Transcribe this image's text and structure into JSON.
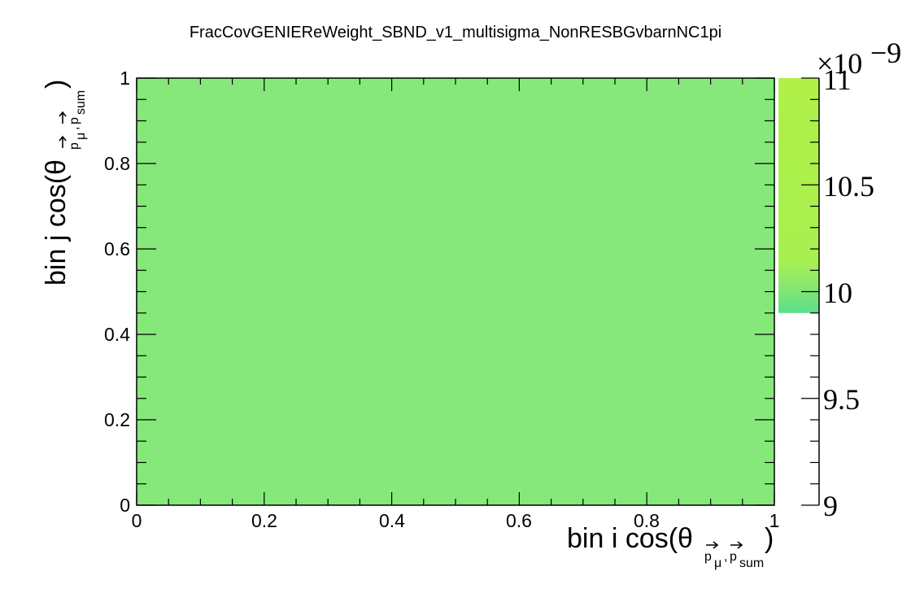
{
  "chart_data": {
    "type": "heatmap",
    "title": "FracCovGENIEReWeight_SBND_v1_multisigma_NonRESBGvbarnNC1pi",
    "xlabel": {
      "main": "bin i cos(θ",
      "sub1": "p",
      "sub2": "μ",
      "sep": ",",
      "sub3": "p",
      "sub4": "sum",
      "close": ")"
    },
    "ylabel": {
      "main": "bin j cos(θ",
      "sub1": "p",
      "sub2": "μ",
      "sep": ",",
      "sub3": "p",
      "sub4": "sum",
      "close": ")"
    },
    "xlim": [
      0,
      1
    ],
    "ylim": [
      0,
      1
    ],
    "x_ticks": [
      "0",
      "0.2",
      "0.4",
      "0.6",
      "0.8",
      "1"
    ],
    "y_ticks": [
      "0",
      "0.2",
      "0.4",
      "0.6",
      "0.8",
      "1"
    ],
    "cells": [
      {
        "x": [
          0,
          1
        ],
        "y": [
          0,
          1
        ],
        "value": 9.95e-09,
        "color": "#86e87a"
      }
    ],
    "zlim": [
      9e-09,
      1.1e-08
    ],
    "z_exponent_label": "×10",
    "z_exponent": "−9",
    "z_ticks": [
      "9",
      "9.5",
      "10",
      "10.5",
      "11"
    ],
    "z_tick_values": [
      9,
      9.5,
      10,
      10.5,
      11
    ],
    "colorbar_drawn_range": [
      9.9,
      11
    ],
    "colorbar_colors": {
      "low": "#5cde8c",
      "mid": "#8ae86e",
      "high": "#b0f048"
    }
  }
}
